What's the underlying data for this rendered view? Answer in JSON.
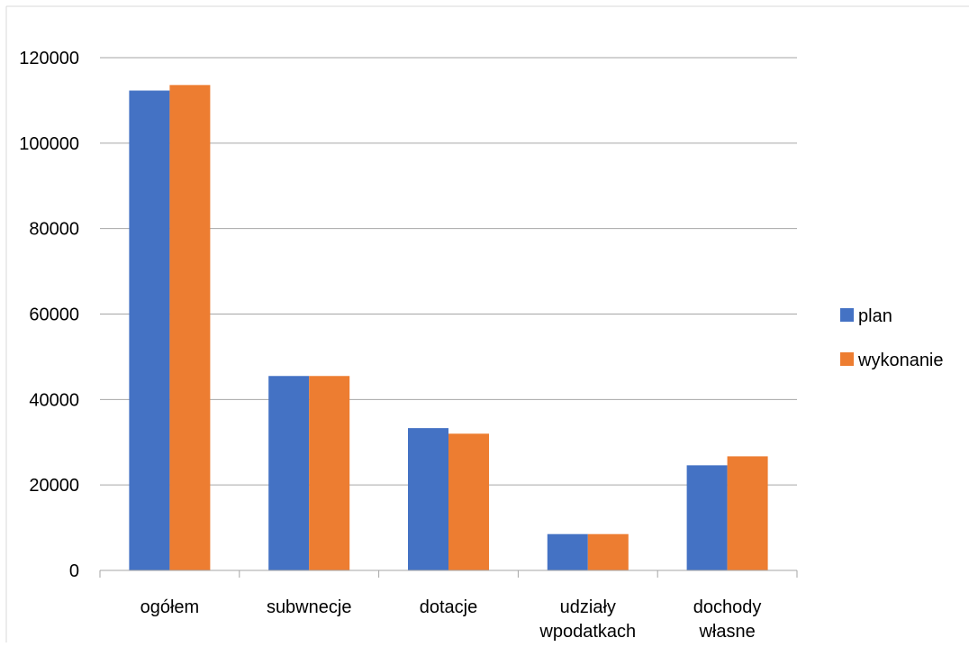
{
  "chart_data": {
    "type": "bar",
    "categories": [
      [
        "ogółem"
      ],
      [
        "subwnecje"
      ],
      [
        "dotacje"
      ],
      [
        "udziały",
        "wpodatkach"
      ],
      [
        "dochody",
        "własne"
      ]
    ],
    "series": [
      {
        "name": "plan",
        "values": [
          112300,
          45500,
          33300,
          8500,
          24600
        ],
        "color": "#4472C4"
      },
      {
        "name": "wykonanie",
        "values": [
          113600,
          45500,
          32000,
          8500,
          26700
        ],
        "color": "#ED7D31"
      }
    ],
    "y_ticks": [
      "0",
      "20000",
      "40000",
      "60000",
      "80000",
      "100000",
      "120000"
    ],
    "ylim": [
      0,
      120000
    ],
    "grid": true,
    "legend": "right",
    "colors": {
      "gridline": "#A6A6A6",
      "axis": "#A6A6A6",
      "frame": "#D9D9D9"
    }
  }
}
